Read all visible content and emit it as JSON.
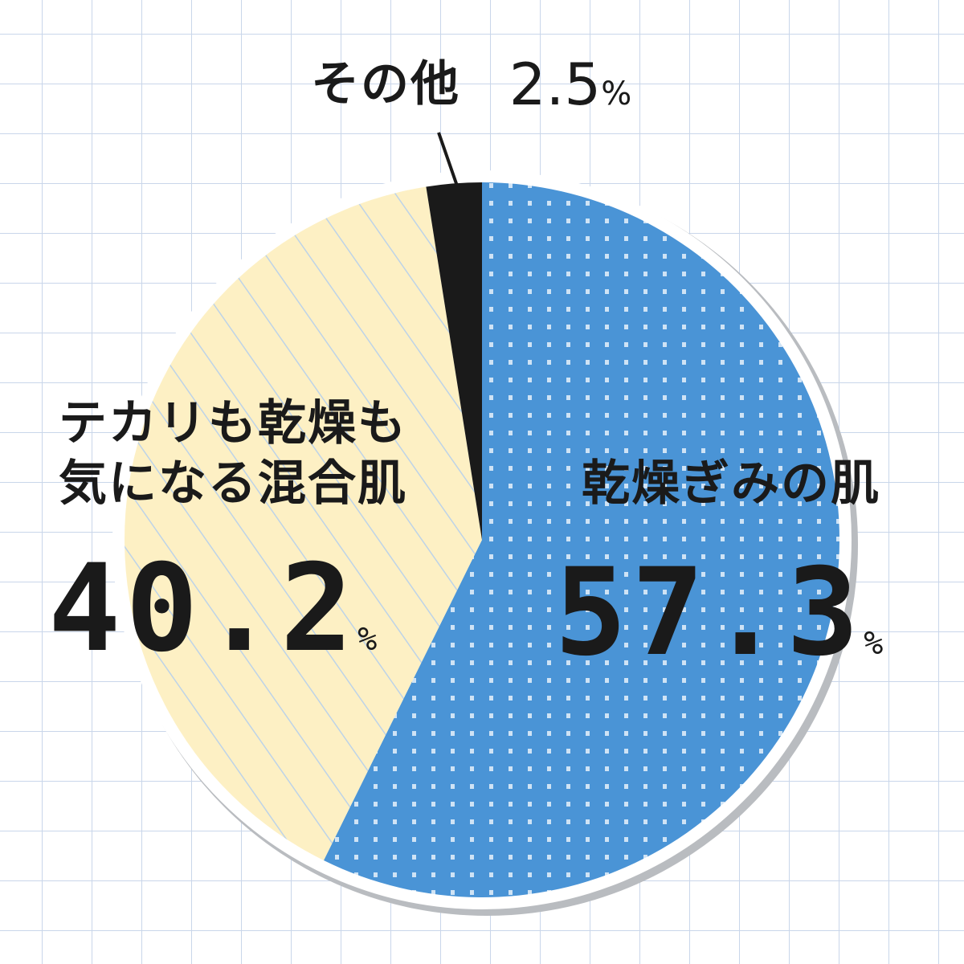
{
  "chart_data": {
    "type": "pie",
    "categories": [
      "乾燥ぎみの肌",
      "テカリも乾燥も\n気になる混合肌",
      "その他"
    ],
    "values": [
      57.3,
      40.2,
      2.5
    ],
    "colors": [
      "#4a94d6",
      "#fdf0c4",
      "#1a1a1a"
    ],
    "unit": "%"
  }
}
